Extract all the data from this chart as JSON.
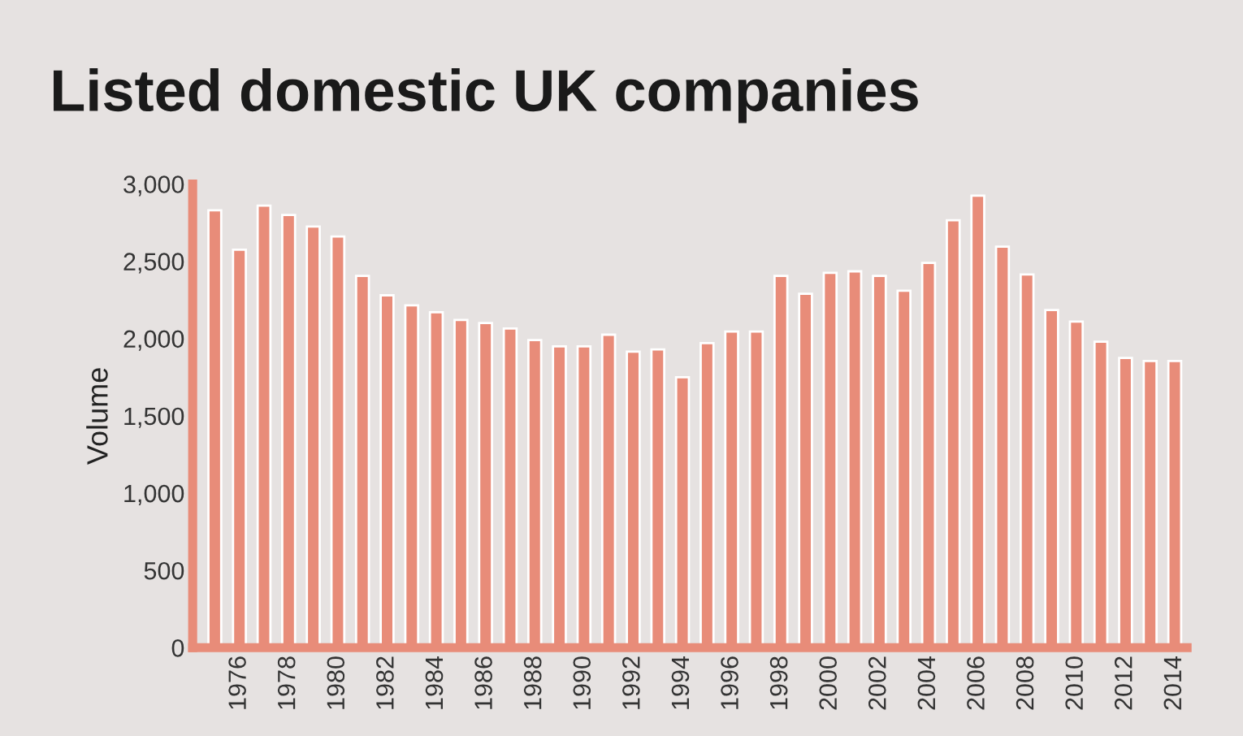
{
  "chart_data": {
    "type": "bar",
    "title": "Listed domestic UK companies",
    "ylabel": "Volume",
    "categories": [
      null,
      "1976",
      null,
      "1978",
      null,
      "1980",
      null,
      "1982",
      null,
      "1984",
      null,
      "1986",
      null,
      "1988",
      null,
      "1990",
      null,
      "1992",
      null,
      "1994",
      null,
      "1996",
      null,
      "1998",
      null,
      "2000",
      null,
      "2002",
      null,
      "2004",
      null,
      "2006",
      null,
      "2008",
      null,
      "2010",
      null,
      "2012",
      null,
      "2014"
    ],
    "values": [
      2830,
      2575,
      2860,
      2800,
      2725,
      2660,
      2405,
      2280,
      2215,
      2170,
      2120,
      2100,
      2065,
      1990,
      1950,
      1950,
      2025,
      1915,
      1930,
      1750,
      1970,
      2045,
      2045,
      2405,
      2290,
      2425,
      2435,
      2405,
      2310,
      2490,
      2765,
      2925,
      2595,
      2415,
      2185,
      2110,
      1980,
      1875,
      1855,
      1855
    ],
    "color": "#e88c79",
    "ylim": [
      0,
      3000
    ],
    "yticks": [
      0,
      {
        "value": 500,
        "label": "500"
      },
      {
        "value": 1000,
        "label": "1,000"
      },
      {
        "value": 1500,
        "label": "1,500"
      },
      {
        "value": 2000,
        "label": "2,000"
      },
      {
        "value": 2500,
        "label": "2,500"
      },
      {
        "value": 3000,
        "label": "3,000"
      }
    ],
    "grid": false
  }
}
